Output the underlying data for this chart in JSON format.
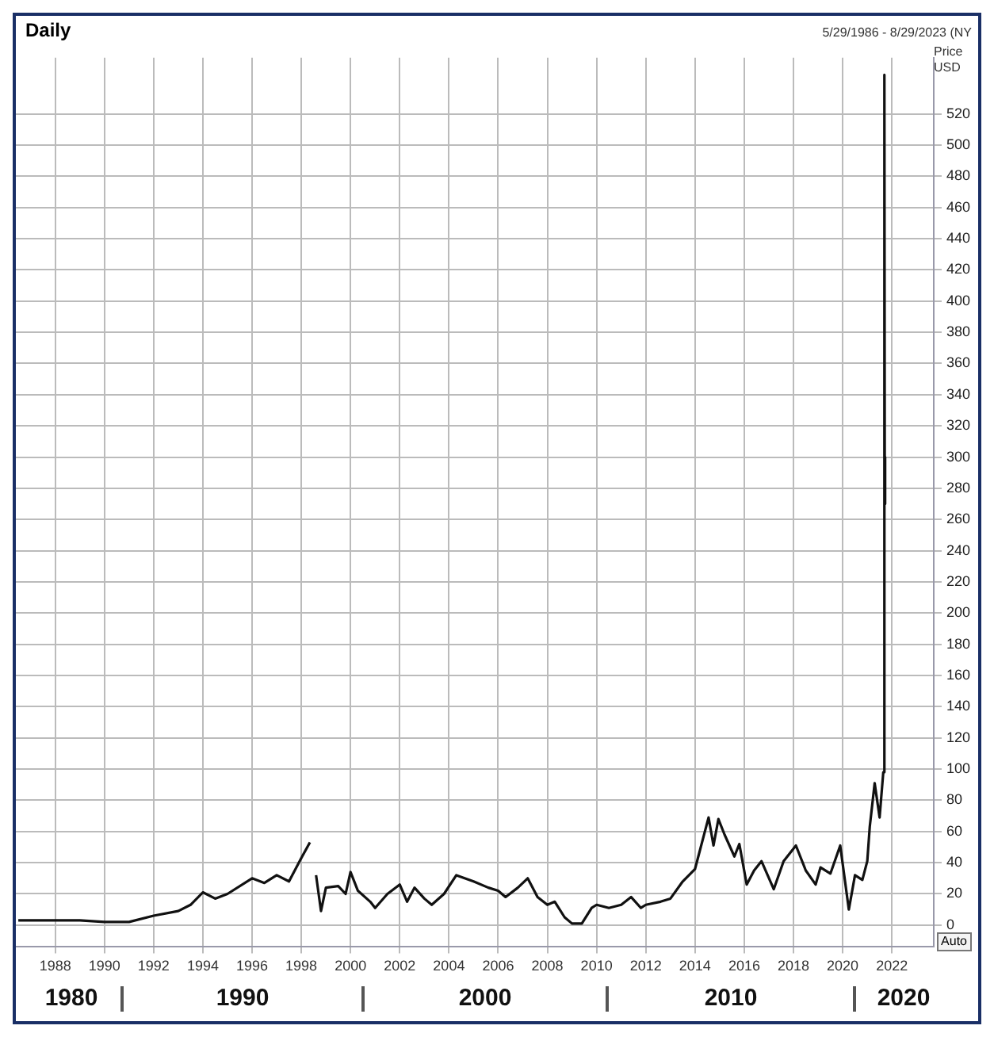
{
  "chart_data": {
    "type": "line",
    "title": "Daily",
    "subtitle": "5/29/1986 - 8/29/2023 (NY",
    "ylabel": "Price USD",
    "annotations": [
      "1980",
      "1990",
      "2000",
      "2010",
      "2020",
      "Auto"
    ],
    "x": [
      1986.5,
      1988,
      1989,
      1990,
      1991,
      1992,
      1993,
      1993.5,
      1994,
      1994.5,
      1995,
      1996,
      1996.5,
      1997,
      1997.5,
      1998,
      1998.35,
      1998.45,
      1998.6,
      1998.8,
      1999,
      1999.5,
      1999.8,
      2000,
      2000.3,
      2000.8,
      2001,
      2001.5,
      2002,
      2002.3,
      2002.6,
      2003,
      2003.3,
      2003.8,
      2004.3,
      2005,
      2005.6,
      2006,
      2006.3,
      2006.8,
      2007.2,
      2007.6,
      2008,
      2008.3,
      2008.7,
      2009,
      2009.4,
      2009.8,
      2010,
      2010.5,
      2011,
      2011.4,
      2011.8,
      2012,
      2012.6,
      2013,
      2013.5,
      2014,
      2014.55,
      2014.75,
      2014.95,
      2015.2,
      2015.6,
      2015.8,
      2016.1,
      2016.4,
      2016.7,
      2017.2,
      2017.6,
      2018.1,
      2018.5,
      2018.9,
      2019.1,
      2019.5,
      2019.9,
      2020.25,
      2020.5,
      2020.8,
      2021,
      2021.1,
      2021.3,
      2021.5,
      2021.65,
      2021.69,
      2021.7,
      2021.71,
      2021.72,
      2021.73
    ],
    "series": [
      {
        "color": "#111111",
        "values": [
          3,
          3,
          3,
          2,
          2,
          6,
          9,
          13,
          21,
          17,
          20,
          30,
          27,
          32,
          28,
          43,
          53,
          null,
          32,
          9,
          24,
          25,
          20,
          34,
          22,
          15,
          11,
          20,
          26,
          15,
          24,
          17,
          13,
          20,
          32,
          28,
          24,
          22,
          18,
          24,
          30,
          18,
          13,
          15,
          5,
          1,
          1,
          11,
          13,
          11,
          13,
          18,
          11,
          13,
          15,
          17,
          28,
          36,
          69,
          51,
          68,
          58,
          44,
          52,
          26,
          35,
          41,
          23,
          41,
          51,
          35,
          26,
          37,
          33,
          51,
          10,
          32,
          29,
          41,
          63,
          91,
          69,
          98,
          272,
          545,
          270,
          300,
          298
        ]
      }
    ],
    "xlim": [
      1986.4,
      2023.7
    ],
    "xticks": [
      1988,
      1990,
      1992,
      1994,
      1996,
      1998,
      2000,
      2002,
      2004,
      2006,
      2008,
      2010,
      2012,
      2014,
      2016,
      2018,
      2020,
      2022
    ],
    "ylim": [
      -14,
      556
    ],
    "yticks": [
      0,
      20,
      40,
      60,
      80,
      100,
      120,
      140,
      160,
      180,
      200,
      220,
      240,
      260,
      280,
      300,
      320,
      340,
      360,
      380,
      400,
      420,
      440,
      460,
      480,
      500,
      520
    ],
    "grid": true,
    "legend": false,
    "marker": "none",
    "line_style": "solid"
  }
}
